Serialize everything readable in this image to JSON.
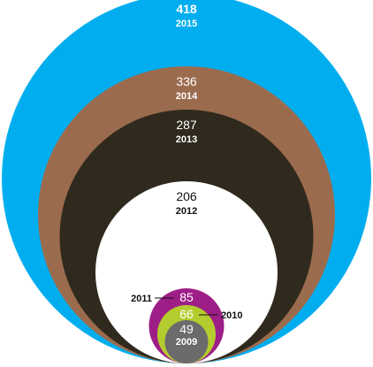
{
  "chart_data": {
    "type": "nested-circles",
    "title": "",
    "items": [
      {
        "year": "2015",
        "value": 418,
        "color": "#00AEEF",
        "text_color": "#ffffff",
        "value_bold": true
      },
      {
        "year": "2014",
        "value": 336,
        "color": "#9B6B4E",
        "text_color": "#ffffff",
        "value_bold": false
      },
      {
        "year": "2013",
        "value": 287,
        "color": "#2F2A1D",
        "text_color": "#ffffff",
        "value_bold": false
      },
      {
        "year": "2012",
        "value": 206,
        "color": "#FFFFFF",
        "text_color": "#111111",
        "value_bold": false
      },
      {
        "year": "2011",
        "value": 85,
        "color": "#9E1E87",
        "text_color": "#ffffff",
        "value_bold": false,
        "callout": "left"
      },
      {
        "year": "2010",
        "value": 66,
        "color": "#B5CC2E",
        "text_color": "#ffffff",
        "value_bold": false,
        "callout": "right"
      },
      {
        "year": "2009",
        "value": 49,
        "color": "#6B6B6B",
        "text_color": "#ffffff",
        "value_bold": false
      }
    ]
  }
}
